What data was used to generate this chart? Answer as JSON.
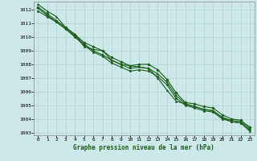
{
  "title": "Graphe pression niveau de la mer (hPa)",
  "bg_color": "#cce8e8",
  "grid_color": "#b0d0d0",
  "line_color": "#1a5e1a",
  "marker_color": "#1a5e1a",
  "xlim": [
    -0.5,
    23.5
  ],
  "ylim": [
    1002.8,
    1012.6
  ],
  "yticks": [
    1003,
    1004,
    1005,
    1006,
    1007,
    1008,
    1009,
    1010,
    1011,
    1012
  ],
  "xticks": [
    0,
    1,
    2,
    3,
    4,
    5,
    6,
    7,
    8,
    9,
    10,
    11,
    12,
    13,
    14,
    15,
    16,
    17,
    18,
    19,
    20,
    21,
    22,
    23
  ],
  "series": [
    [
      1012.4,
      1011.9,
      1011.5,
      1010.7,
      1010.2,
      1009.3,
      1009.1,
      1009.0,
      1008.3,
      1008.0,
      1007.9,
      1007.8,
      1007.7,
      1007.0,
      1006.1,
      1005.3,
      1005.1,
      1004.9,
      1004.7,
      1004.6,
      1004.1,
      1003.8,
      1003.7,
      1003.1
    ],
    [
      1012.2,
      1011.7,
      1011.2,
      1010.7,
      1010.2,
      1009.6,
      1009.3,
      1009.0,
      1008.5,
      1008.2,
      1007.9,
      1008.0,
      1008.0,
      1007.6,
      1006.9,
      1005.9,
      1005.2,
      1005.1,
      1004.9,
      1004.8,
      1004.3,
      1004.0,
      1003.9,
      1003.4
    ],
    [
      1012.1,
      1011.6,
      1011.1,
      1010.6,
      1010.1,
      1009.5,
      1009.0,
      1008.7,
      1008.3,
      1008.0,
      1007.7,
      1007.8,
      1007.7,
      1007.3,
      1006.7,
      1005.7,
      1005.1,
      1004.9,
      1004.7,
      1004.6,
      1004.1,
      1003.9,
      1003.8,
      1003.3
    ],
    [
      1011.9,
      1011.5,
      1011.1,
      1010.6,
      1010.0,
      1009.4,
      1008.9,
      1008.6,
      1008.1,
      1007.8,
      1007.5,
      1007.6,
      1007.5,
      1007.1,
      1006.5,
      1005.5,
      1005.0,
      1004.8,
      1004.6,
      1004.5,
      1004.0,
      1003.8,
      1003.7,
      1003.2
    ]
  ]
}
